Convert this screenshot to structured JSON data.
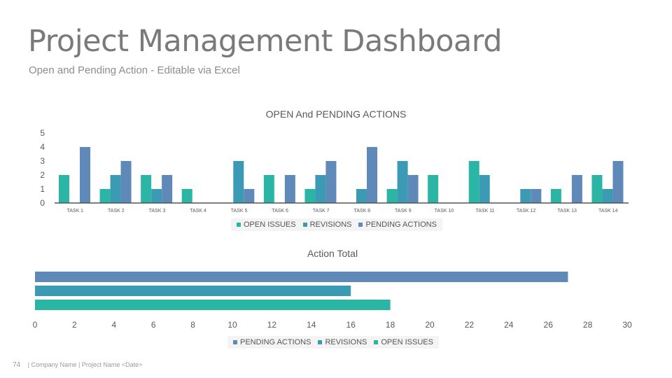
{
  "header": {
    "title": "Project Management Dashboard",
    "subtitle": "Open and Pending Action - Editable via Excel"
  },
  "footer": {
    "page_number": "74",
    "text": "| Company Name | Project Name <Date>"
  },
  "colors": {
    "open_issues": "#2bb5a5",
    "revisions": "#3b9bb5",
    "pending_actions": "#5f89b8",
    "axis": "#555555",
    "text": "#595959"
  },
  "chart_data": [
    {
      "type": "bar",
      "orientation": "vertical",
      "title": "OPEN And PENDING ACTIONS",
      "categories": [
        "TASK 1",
        "TASK 2",
        "TASK 3",
        "TASK 4",
        "TASK 5",
        "TASK 6",
        "TASK 7",
        "TASK 8",
        "TASK 9",
        "TASK 10",
        "TASK 11",
        "TASK 12",
        "TASK 13",
        "TASK 14"
      ],
      "series": [
        {
          "name": "OPEN ISSUES",
          "values": [
            2,
            1,
            2,
            1,
            0,
            2,
            1,
            0,
            1,
            2,
            3,
            0,
            1,
            2
          ]
        },
        {
          "name": "REVISIONS",
          "values": [
            0,
            2,
            1,
            0,
            3,
            0,
            2,
            1,
            3,
            0,
            2,
            1,
            0,
            1
          ]
        },
        {
          "name": "PENDING ACTIONS",
          "values": [
            4,
            3,
            2,
            0,
            1,
            2,
            3,
            4,
            2,
            0,
            0,
            1,
            2,
            3
          ]
        }
      ],
      "ylim": [
        0,
        5
      ],
      "yticks": [
        "0",
        "1",
        "2",
        "3",
        "4",
        "5"
      ],
      "legend": "bottom",
      "grid": false
    },
    {
      "type": "bar",
      "orientation": "horizontal",
      "title": "Action Total",
      "series": [
        {
          "name": "PENDING ACTIONS",
          "value": 27
        },
        {
          "name": "REVISIONS",
          "value": 16
        },
        {
          "name": "OPEN ISSUES",
          "value": 18
        }
      ],
      "xlim": [
        0,
        30
      ],
      "xticks": [
        "0",
        "2",
        "4",
        "6",
        "8",
        "10",
        "12",
        "14",
        "16",
        "18",
        "20",
        "22",
        "24",
        "26",
        "28",
        "30"
      ],
      "legend": "bottom",
      "grid": false
    }
  ]
}
